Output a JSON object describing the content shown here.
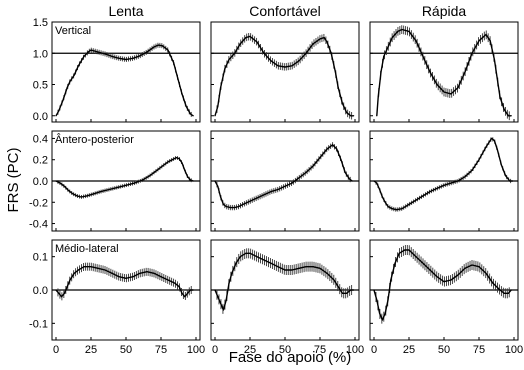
{
  "chart_data": {
    "type": "line",
    "title": "",
    "xlabel": "Fase do apoio (%)",
    "ylabel": "FRS (PC)",
    "columns": [
      "Lenta",
      "Confortável",
      "Rápida"
    ],
    "x_axis": {
      "range": [
        0,
        100
      ],
      "ticks": [
        0,
        25,
        50,
        75,
        100
      ]
    },
    "rows": [
      {
        "label": "Vertical",
        "ylim": [
          -0.1,
          1.5
        ],
        "yticks": [
          0.0,
          0.5,
          1.0,
          1.5
        ],
        "tick_labels": [
          "0.0",
          "0.5",
          "1.0",
          "1.5"
        ],
        "reference_line": 1.0
      },
      {
        "label": "Ântero-posterior",
        "ylim": [
          -0.47,
          0.47
        ],
        "yticks": [
          -0.4,
          -0.2,
          0.0,
          0.2,
          0.4
        ],
        "tick_labels": [
          "-0.4",
          "-0.2",
          "0.0",
          "0.2",
          "0.4"
        ],
        "reference_line": 0.0
      },
      {
        "label": "Médio-lateral",
        "ylim": [
          -0.15,
          0.15
        ],
        "yticks": [
          -0.1,
          0.0,
          0.1
        ],
        "tick_labels": [
          "-0.1",
          "0.0",
          "0.1"
        ],
        "reference_line": 0.0
      }
    ],
    "x_tick_labels": [
      "0",
      "25",
      "50",
      "75",
      "100"
    ],
    "panels": [
      {
        "row": 0,
        "col": 0,
        "x": [
          0,
          2,
          5,
          8,
          10,
          13,
          16,
          20,
          23,
          25,
          30,
          35,
          40,
          45,
          50,
          55,
          60,
          65,
          70,
          73,
          76,
          80,
          84,
          87,
          90,
          93,
          96,
          98
        ],
        "y": [
          0.0,
          0.08,
          0.25,
          0.45,
          0.55,
          0.65,
          0.8,
          0.95,
          1.02,
          1.05,
          1.02,
          0.99,
          0.95,
          0.92,
          0.9,
          0.92,
          0.96,
          1.02,
          1.1,
          1.13,
          1.12,
          1.05,
          0.85,
          0.6,
          0.35,
          0.15,
          0.03,
          0.0
        ],
        "sd": 0.04
      },
      {
        "row": 0,
        "col": 1,
        "x": [
          0,
          2,
          4,
          7,
          10,
          14,
          18,
          22,
          25,
          30,
          35,
          40,
          45,
          50,
          55,
          60,
          65,
          70,
          75,
          78,
          80,
          83,
          86,
          88,
          91,
          94,
          97,
          99
        ],
        "y": [
          0.0,
          0.15,
          0.45,
          0.75,
          0.9,
          1.0,
          1.15,
          1.25,
          1.27,
          1.18,
          1.0,
          0.88,
          0.8,
          0.78,
          0.8,
          0.88,
          1.0,
          1.15,
          1.23,
          1.25,
          1.18,
          1.0,
          0.7,
          0.45,
          0.2,
          0.05,
          0.0,
          0.0
        ],
        "sd": 0.06
      },
      {
        "row": 0,
        "col": 2,
        "x": [
          2,
          3,
          5,
          7,
          10,
          13,
          17,
          20,
          25,
          30,
          35,
          40,
          45,
          50,
          55,
          60,
          65,
          70,
          75,
          80,
          83,
          86,
          88,
          90,
          93,
          96,
          98
        ],
        "y": [
          0.0,
          0.3,
          0.7,
          0.95,
          1.1,
          1.25,
          1.35,
          1.38,
          1.35,
          1.2,
          0.95,
          0.7,
          0.5,
          0.38,
          0.35,
          0.45,
          0.7,
          1.0,
          1.2,
          1.3,
          1.2,
          0.9,
          0.6,
          0.3,
          0.1,
          0.0,
          0.0
        ],
        "sd": 0.07
      },
      {
        "row": 1,
        "col": 0,
        "x": [
          0,
          3,
          6,
          9,
          12,
          15,
          18,
          22,
          27,
          32,
          38,
          44,
          50,
          56,
          62,
          67,
          72,
          77,
          80,
          83,
          86,
          88,
          90,
          92,
          94,
          96,
          98
        ],
        "y": [
          0.0,
          -0.02,
          -0.05,
          -0.09,
          -0.12,
          -0.14,
          -0.15,
          -0.14,
          -0.12,
          -0.1,
          -0.08,
          -0.06,
          -0.04,
          -0.02,
          0.01,
          0.05,
          0.1,
          0.15,
          0.18,
          0.2,
          0.22,
          0.21,
          0.17,
          0.1,
          0.04,
          0.01,
          0.0
        ],
        "sd": 0.018
      },
      {
        "row": 1,
        "col": 1,
        "x": [
          0,
          2,
          4,
          6,
          8,
          11,
          14,
          17,
          20,
          25,
          30,
          35,
          40,
          45,
          50,
          55,
          60,
          65,
          70,
          75,
          80,
          84,
          87,
          90,
          93,
          96,
          98
        ],
        "y": [
          0.0,
          -0.05,
          -0.15,
          -0.22,
          -0.24,
          -0.25,
          -0.25,
          -0.24,
          -0.22,
          -0.19,
          -0.16,
          -0.13,
          -0.1,
          -0.08,
          -0.05,
          -0.02,
          0.03,
          0.08,
          0.14,
          0.22,
          0.3,
          0.34,
          0.3,
          0.2,
          0.08,
          0.02,
          0.0
        ],
        "sd": 0.025
      },
      {
        "row": 1,
        "col": 2,
        "x": [
          0,
          2,
          4,
          6,
          8,
          10,
          13,
          16,
          20,
          25,
          30,
          35,
          40,
          45,
          50,
          55,
          60,
          65,
          70,
          75,
          80,
          84,
          86,
          88,
          91,
          94,
          97,
          99
        ],
        "y": [
          0.0,
          -0.02,
          -0.08,
          -0.15,
          -0.2,
          -0.24,
          -0.26,
          -0.27,
          -0.26,
          -0.22,
          -0.18,
          -0.14,
          -0.1,
          -0.07,
          -0.04,
          -0.02,
          0.0,
          0.04,
          0.1,
          0.2,
          0.32,
          0.4,
          0.38,
          0.3,
          0.15,
          0.05,
          0.0,
          0.0
        ],
        "sd": 0.02
      },
      {
        "row": 2,
        "col": 0,
        "x": [
          0,
          2,
          4,
          6,
          8,
          10,
          13,
          16,
          20,
          25,
          30,
          35,
          40,
          45,
          50,
          55,
          60,
          65,
          70,
          75,
          80,
          85,
          88,
          90,
          92,
          94,
          96,
          98
        ],
        "y": [
          0.0,
          -0.01,
          -0.02,
          -0.01,
          0.01,
          0.03,
          0.05,
          0.06,
          0.07,
          0.07,
          0.065,
          0.06,
          0.05,
          0.04,
          0.035,
          0.04,
          0.05,
          0.055,
          0.05,
          0.04,
          0.03,
          0.02,
          0.01,
          -0.01,
          -0.02,
          -0.01,
          0.0,
          0.0
        ],
        "sd": 0.012
      },
      {
        "row": 2,
        "col": 1,
        "x": [
          0,
          2,
          4,
          6,
          8,
          10,
          12,
          15,
          18,
          22,
          25,
          30,
          35,
          40,
          45,
          50,
          55,
          60,
          65,
          70,
          75,
          80,
          85,
          88,
          91,
          94,
          97,
          99
        ],
        "y": [
          0.0,
          -0.02,
          -0.04,
          -0.06,
          -0.03,
          0.02,
          0.05,
          0.08,
          0.1,
          0.11,
          0.11,
          0.1,
          0.09,
          0.08,
          0.07,
          0.06,
          0.06,
          0.065,
          0.07,
          0.07,
          0.065,
          0.05,
          0.03,
          0.01,
          -0.01,
          -0.01,
          0.0,
          0.0
        ],
        "sd": 0.015
      },
      {
        "row": 2,
        "col": 2,
        "x": [
          0,
          2,
          4,
          6,
          8,
          10,
          12,
          15,
          18,
          22,
          25,
          30,
          35,
          40,
          45,
          50,
          55,
          60,
          65,
          70,
          75,
          80,
          85,
          90,
          93,
          96,
          98
        ],
        "y": [
          0.0,
          -0.03,
          -0.07,
          -0.09,
          -0.07,
          -0.03,
          0.03,
          0.08,
          0.11,
          0.12,
          0.12,
          0.1,
          0.08,
          0.06,
          0.04,
          0.025,
          0.03,
          0.045,
          0.065,
          0.075,
          0.07,
          0.05,
          0.02,
          0.0,
          -0.01,
          -0.01,
          0.0
        ],
        "sd": 0.015
      }
    ]
  }
}
